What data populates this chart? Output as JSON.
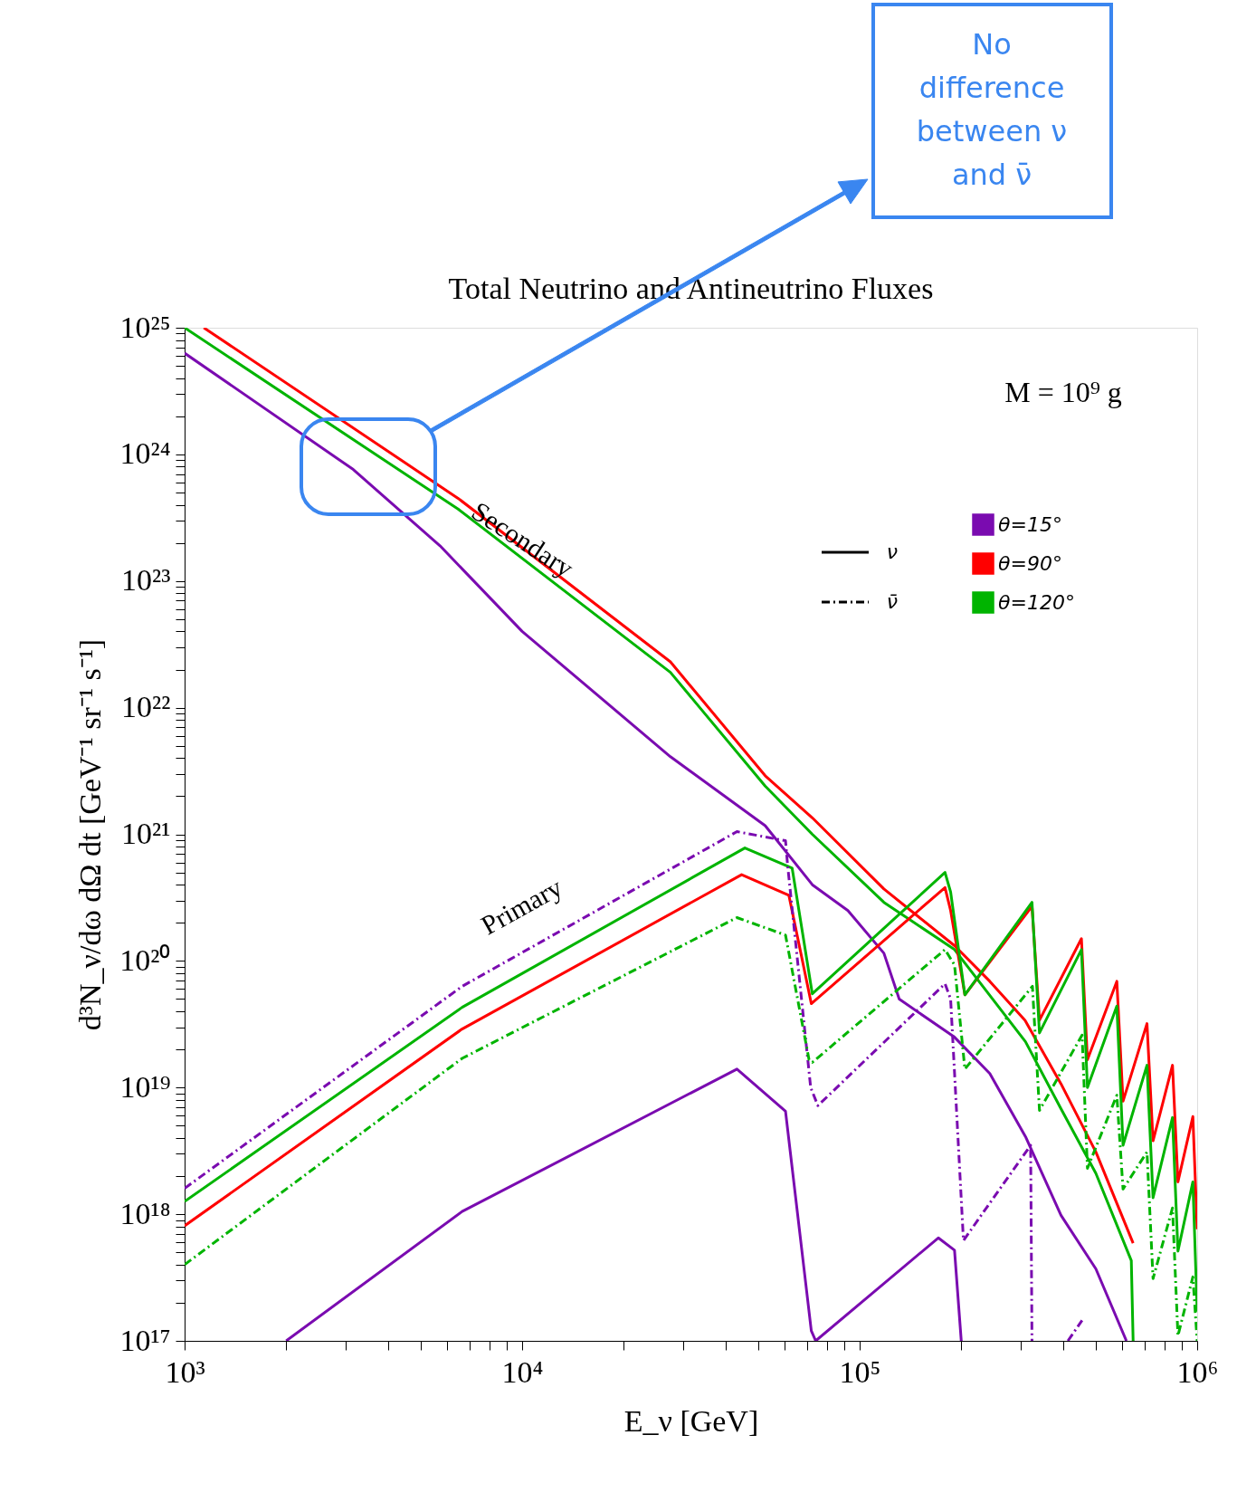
{
  "chart_data": {
    "type": "line",
    "title": "Total Neutrino and Antineutrino Fluxes",
    "xlabel": "E_ν [GeV]",
    "ylabel": "d³N_ν/dω dΩ dt [GeV⁻¹ sr⁻¹ s⁻¹]",
    "log": "xy",
    "legend": "top right",
    "xlim": [
      1000,
      1000000
    ],
    "ylim": [
      1e+17,
      1e+25
    ],
    "xticks": [
      {
        "value": 1000,
        "label": "10³"
      },
      {
        "value": 2000,
        "label": null
      },
      {
        "value": 3000,
        "label": null
      },
      {
        "value": 4000,
        "label": null
      },
      {
        "value": 5000,
        "label": null
      },
      {
        "value": 6000,
        "label": null
      },
      {
        "value": 7000,
        "label": null
      },
      {
        "value": 8000,
        "label": null
      },
      {
        "value": 9000,
        "label": null
      },
      {
        "value": 10000,
        "label": "10⁴"
      },
      {
        "value": 20000,
        "label": null
      },
      {
        "value": 30000,
        "label": null
      },
      {
        "value": 40000,
        "label": null
      },
      {
        "value": 50000,
        "label": null
      },
      {
        "value": 60000,
        "label": null
      },
      {
        "value": 70000,
        "label": null
      },
      {
        "value": 80000,
        "label": null
      },
      {
        "value": 90000,
        "label": null
      },
      {
        "value": 100000,
        "label": "10⁵"
      },
      {
        "value": 200000,
        "label": null
      },
      {
        "value": 300000,
        "label": null
      },
      {
        "value": 400000,
        "label": null
      },
      {
        "value": 500000,
        "label": null
      },
      {
        "value": 600000,
        "label": null
      },
      {
        "value": 700000,
        "label": null
      },
      {
        "value": 800000,
        "label": null
      },
      {
        "value": 900000,
        "label": null
      },
      {
        "value": 1000000,
        "label": "10⁶"
      }
    ],
    "yticks": [
      {
        "value": 1e+17,
        "label": "10¹⁷"
      },
      {
        "value": 1e+18,
        "label": "10¹⁸"
      },
      {
        "value": 1e+19,
        "label": "10¹⁹"
      },
      {
        "value": 1e+20,
        "label": "10²⁰"
      },
      {
        "value": 1e+21,
        "label": "10²¹"
      },
      {
        "value": 1e+22,
        "label": "10²²"
      },
      {
        "value": 1e+23,
        "label": "10²³"
      },
      {
        "value": 1e+24,
        "label": "10²⁴"
      },
      {
        "value": 1e+25,
        "label": "10²⁵"
      },
      {
        "value": 2e+17,
        "label": null
      },
      {
        "value": 3e+17,
        "label": null
      },
      {
        "value": 4e+17,
        "label": null
      },
      {
        "value": 5e+17,
        "label": null
      },
      {
        "value": 6e+17,
        "label": null
      },
      {
        "value": 7e+17,
        "label": null
      },
      {
        "value": 8e+17,
        "label": null
      },
      {
        "value": 9e+17,
        "label": null
      },
      {
        "value": 2e+18,
        "label": null
      },
      {
        "value": 3e+18,
        "label": null
      },
      {
        "value": 4e+18,
        "label": null
      },
      {
        "value": 5e+18,
        "label": null
      },
      {
        "value": 6e+18,
        "label": null
      },
      {
        "value": 7e+18,
        "label": null
      },
      {
        "value": 8e+18,
        "label": null
      },
      {
        "value": 9e+18,
        "label": null
      },
      {
        "value": 2e+19,
        "label": null
      },
      {
        "value": 3e+19,
        "label": null
      },
      {
        "value": 4e+19,
        "label": null
      },
      {
        "value": 5e+19,
        "label": null
      },
      {
        "value": 6e+19,
        "label": null
      },
      {
        "value": 7e+19,
        "label": null
      },
      {
        "value": 8e+19,
        "label": null
      },
      {
        "value": 9e+19,
        "label": null
      },
      {
        "value": 2e+20,
        "label": null
      },
      {
        "value": 3e+20,
        "label": null
      },
      {
        "value": 4e+20,
        "label": null
      },
      {
        "value": 5e+20,
        "label": null
      },
      {
        "value": 6e+20,
        "label": null
      },
      {
        "value": 7e+20,
        "label": null
      },
      {
        "value": 8e+20,
        "label": null
      },
      {
        "value": 9e+20,
        "label": null
      },
      {
        "value": 2e+21,
        "label": null
      },
      {
        "value": 3e+21,
        "label": null
      },
      {
        "value": 4e+21,
        "label": null
      },
      {
        "value": 5e+21,
        "label": null
      },
      {
        "value": 6e+21,
        "label": null
      },
      {
        "value": 7e+21,
        "label": null
      },
      {
        "value": 8e+21,
        "label": null
      },
      {
        "value": 9e+21,
        "label": null
      },
      {
        "value": 2e+22,
        "label": null
      },
      {
        "value": 3e+22,
        "label": null
      },
      {
        "value": 4e+22,
        "label": null
      },
      {
        "value": 5e+22,
        "label": null
      },
      {
        "value": 6e+22,
        "label": null
      },
      {
        "value": 7e+22,
        "label": null
      },
      {
        "value": 8e+22,
        "label": null
      },
      {
        "value": 9e+22,
        "label": null
      },
      {
        "value": 2e+23,
        "label": null
      },
      {
        "value": 3e+23,
        "label": null
      },
      {
        "value": 4e+23,
        "label": null
      },
      {
        "value": 5e+23,
        "label": null
      },
      {
        "value": 6e+23,
        "label": null
      },
      {
        "value": 7e+23,
        "label": null
      },
      {
        "value": 8e+23,
        "label": null
      },
      {
        "value": 9e+23,
        "label": null
      },
      {
        "value": 2e+24,
        "label": null
      },
      {
        "value": 3e+24,
        "label": null
      },
      {
        "value": 4e+24,
        "label": null
      },
      {
        "value": 5e+24,
        "label": null
      },
      {
        "value": 6e+24,
        "label": null
      },
      {
        "value": 7e+24,
        "label": null
      },
      {
        "value": 8e+24,
        "label": null
      },
      {
        "value": 9e+24,
        "label": null
      }
    ],
    "series": [
      {
        "name": "θ=15°",
        "color": "#7a0bb0",
        "line_style": "solid",
        "x": [
          1000,
          3160,
          5710,
          10000,
          27500,
          52500,
          72400,
          92300,
          118000,
          131000,
          191000,
          243000,
          310000,
          395000,
          501000,
          617000
        ],
        "values": [
          6.3e+24,
          7.6e+23,
          1.9e+23,
          4e+22,
          4.1e+21,
          1.17e+21,
          4e+20,
          2.5e+20,
          1.15e+20,
          5e+19,
          2.5e+19,
          1.29e+19,
          4.1e+18,
          9.8e+17,
          3.7e+17,
          1e+17
        ]
      },
      {
        "name": "θ=90°",
        "color": "#ff0000",
        "line_style": "solid",
        "x": [
          1140,
          6460,
          27500,
          52500,
          72400,
          118000,
          191000,
          243000,
          309000,
          395000,
          501000,
          646000
        ],
        "values": [
          1e+25,
          4.5e+23,
          2.3e+22,
          2.9e+21,
          1.35e+21,
          3.7e+20,
          1.32e+20,
          6.9e+19,
          3.4e+19,
          1.07e+19,
          3.1e+18,
          5.9e+17
        ]
      },
      {
        "name": "θ=120°",
        "color": "#00b400",
        "line_style": "solid",
        "x": [
          1000,
          6460,
          27500,
          52500,
          72400,
          118000,
          191000,
          310000,
          395000,
          501000,
          638000,
          646000
        ],
        "values": [
          1e+25,
          3.7e+23,
          1.9e+22,
          2.4e+21,
          1e+21,
          2.9e+20,
          1.23e+20,
          2.3e+19,
          6.8e+18,
          2.1e+18,
          4.3e+17,
          1e+17
        ]
      },
      {
        "color": "#7a0bb0",
        "line_style": "solid",
        "x": [
          2000,
          6640,
          43300,
          60300,
          71900,
          74100,
          171000,
          191000,
          200000
        ],
        "values": [
          1e+17,
          1.05e+18,
          1.4e+19,
          6.5e+18,
          1.2e+17,
          1e+17,
          6.5e+17,
          5.2e+17,
          1e+17
        ]
      },
      {
        "color": "#ff0000",
        "line_style": "solid",
        "x": [
          1000,
          6640,
          44700,
          61700,
          71900,
          179000,
          186000,
          205000,
          324000,
          341000,
          454000,
          473000,
          578000,
          603000,
          710000,
          740000,
          845000,
          877000,
          971000,
          1000000
        ],
        "values": [
          8.1e+17,
          2.9e+19,
          4.8e+20,
          3.3e+20,
          4.6e+19,
          3.8e+20,
          2.5e+20,
          5.4e+19,
          2.7e+20,
          3.4e+19,
          1.5e+20,
          1.66e+19,
          6.9e+19,
          7.8e+18,
          3.2e+19,
          3.8e+18,
          1.5e+19,
          1.8e+18,
          5.9e+18,
          7.6e+17
        ]
      },
      {
        "color": "#00b400",
        "line_style": "solid",
        "x": [
          1000,
          6640,
          45700,
          63100,
          72400,
          179000,
          186000,
          205000,
          324000,
          341000,
          454000,
          473000,
          578000,
          603000,
          710000,
          740000,
          845000,
          877000,
          971000,
          1000000
        ],
        "values": [
          1.26e+18,
          4.3e+19,
          7.8e+20,
          5.4e+20,
          5.5e+19,
          5e+20,
          3.5e+20,
          5.4e+19,
          2.9e+20,
          2.7e+19,
          1.23e+20,
          1e+19,
          4.4e+19,
          3.5e+18,
          1.5e+19,
          1.35e+18,
          5.8e+18,
          5.1e+17,
          1.8e+18,
          1.7e+17
        ]
      },
      {
        "color": "#7a0bb0",
        "line_style": "dashed",
        "x": [
          1000,
          6640,
          43300,
          60300,
          61100,
          71600,
          75200,
          179000,
          186000,
          203000,
          321000,
          324000,
          370000,
          414000,
          456000
        ],
        "values": [
          1.6e+18,
          6.3e+19,
          1.05e+21,
          8.9e+20,
          5.9e+20,
          1e+19,
          7.2e+18,
          6.6e+19,
          5e+19,
          6.2e+17,
          3.5e+18,
          1e+17,
          null,
          1e+17,
          1.45e+17
        ]
      },
      {
        "color": "#00b400",
        "line_style": "dashed",
        "x": [
          1000,
          6640,
          43300,
          60300,
          61200,
          70800,
          72400,
          179000,
          191000,
          205000,
          325000,
          341000,
          456000,
          473000,
          578000,
          603000,
          710000,
          740000,
          845000,
          877000,
          971000,
          1000000
        ],
        "values": [
          4e+17,
          1.7e+19,
          2.2e+20,
          1.6e+20,
          1.3e+20,
          1.66e+19,
          1.58e+19,
          1.23e+20,
          9.3e+19,
          1.4e+19,
          6.3e+19,
          6.6e+18,
          2.6e+19,
          2.3e+18,
          8.7e+18,
          1.58e+18,
          3.1e+18,
          3.1e+17,
          1.12e+18,
          1.1e+17,
          3.2e+17,
          1e+17
        ]
      }
    ],
    "annotations": [
      "Secondary",
      "Primary",
      "M = 10⁹ g",
      "ν",
      "ν̄",
      "No difference between ν and ν̄"
    ]
  }
}
